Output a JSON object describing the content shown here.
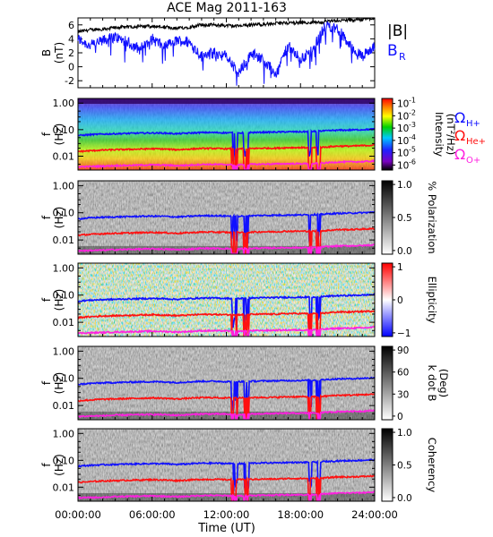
{
  "figure": {
    "title": "ACE Mag 2011-163",
    "xlabel": "Time (UT)"
  },
  "colors": {
    "B_total": "#000000",
    "B_R": "#1010ff",
    "H": "#1010ff",
    "He": "#ff1010",
    "O": "#ff20e0"
  },
  "chart_data": [
    {
      "type": "line",
      "name": "B",
      "ylabel": "B",
      "ylabel_unit": "(nT)",
      "xlim": [
        0,
        24
      ],
      "ylim": [
        -3,
        7
      ],
      "yticks": [
        -2,
        0,
        2,
        4,
        6
      ],
      "x": [
        0,
        1,
        2,
        3,
        4,
        5,
        6,
        7,
        8,
        9,
        10,
        11,
        12,
        13,
        14,
        15,
        16,
        17,
        18,
        19,
        20,
        21,
        22,
        23,
        24
      ],
      "series": [
        {
          "name": "|B|",
          "values": [
            5.0,
            5.3,
            5.4,
            5.6,
            5.7,
            5.8,
            5.8,
            5.7,
            5.5,
            5.7,
            6.0,
            6.0,
            5.9,
            5.8,
            6.0,
            6.1,
            6.2,
            6.3,
            6.3,
            6.4,
            6.4,
            6.6,
            6.7,
            6.8,
            7.0
          ]
        },
        {
          "name": "B_R",
          "values": [
            4.0,
            3.0,
            3.7,
            4.3,
            3.5,
            2.5,
            4.0,
            2.8,
            3.8,
            3.5,
            1.5,
            2.0,
            1.5,
            -1.0,
            2.0,
            1.0,
            -1.0,
            3.0,
            1.0,
            2.5,
            6.0,
            5.5,
            3.0,
            1.5,
            3.0
          ]
        }
      ],
      "legend": [
        "|B|",
        "B",
        "R"
      ]
    },
    {
      "type": "heatmap",
      "name": "intensity",
      "ylabel": "f",
      "ylabel_unit": "(Hz)",
      "yticks": [
        "1.00",
        "0.10",
        "0.01"
      ],
      "colorbar_label": "Intensity",
      "colorbar_unit": "(nT²/Hz)",
      "colorbar_ticks": [
        "10",
        "10",
        "10",
        "10",
        "10",
        "10"
      ],
      "colorbar_exponents": [
        "-1",
        "-2",
        "-3",
        "-4",
        "-5",
        "-6"
      ],
      "legend": [
        "Ω",
        "H+",
        "Ω",
        "He+",
        "Ω",
        "O+"
      ]
    },
    {
      "type": "heatmap",
      "name": "polarization",
      "ylabel": "f",
      "ylabel_unit": "(Hz)",
      "yticks": [
        "1.00",
        "0.10",
        "0.01"
      ],
      "colorbar_label": "% Polarization",
      "colorbar_ticks": [
        "1.0",
        "0.5",
        "0.0"
      ]
    },
    {
      "type": "heatmap",
      "name": "ellipticity",
      "ylabel": "f",
      "ylabel_unit": "(Hz)",
      "yticks": [
        "1.00",
        "0.10",
        "0.01"
      ],
      "colorbar_label": "Ellipticity",
      "colorbar_ticks": [
        "1",
        "0",
        "−1"
      ]
    },
    {
      "type": "heatmap",
      "name": "kdotb",
      "ylabel": "f",
      "ylabel_unit": "(Hz)",
      "yticks": [
        "1.00",
        "0.10",
        "0.01"
      ],
      "colorbar_label": "k dot B",
      "colorbar_unit": "(Deg)",
      "colorbar_ticks": [
        "90",
        "60",
        "30",
        "0"
      ]
    },
    {
      "type": "heatmap",
      "name": "coherency",
      "ylabel": "f",
      "ylabel_unit": "(Hz)",
      "yticks": [
        "1.00",
        "0.10",
        "0.01"
      ],
      "colorbar_label": "Coherency",
      "colorbar_ticks": [
        "1.0",
        "0.5",
        "0.0"
      ],
      "xticks": [
        "00:00:00",
        "06:00:00",
        "12:00:00",
        "18:00:00",
        "24:00:00"
      ],
      "xtick_hours": [
        0,
        6,
        12,
        18,
        24
      ]
    }
  ],
  "gyrofrequencies": {
    "x": [
      0,
      1,
      2,
      3,
      4,
      5,
      6,
      7,
      8,
      9,
      10,
      11,
      12,
      13,
      14,
      15,
      16,
      17,
      18,
      19,
      20,
      21,
      22,
      23,
      24
    ],
    "H+": [
      0.06,
      0.065,
      0.068,
      0.07,
      0.072,
      0.074,
      0.075,
      0.074,
      0.07,
      0.074,
      0.078,
      0.078,
      0.076,
      0.075,
      0.078,
      0.08,
      0.081,
      0.083,
      0.083,
      0.085,
      0.09,
      0.095,
      0.097,
      0.1,
      0.105
    ],
    "He+": [
      0.015,
      0.016,
      0.017,
      0.0175,
      0.018,
      0.0185,
      0.019,
      0.0185,
      0.0175,
      0.0185,
      0.0195,
      0.0195,
      0.019,
      0.019,
      0.0195,
      0.02,
      0.02,
      0.021,
      0.021,
      0.021,
      0.022,
      0.024,
      0.024,
      0.025,
      0.026
    ],
    "O+": [
      0.004,
      0.0041,
      0.0042,
      0.0044,
      0.0045,
      0.0046,
      0.0047,
      0.0046,
      0.0044,
      0.0046,
      0.0049,
      0.0049,
      0.0048,
      0.0047,
      0.0049,
      0.005,
      0.0051,
      0.0052,
      0.0052,
      0.0053,
      0.0056,
      0.006,
      0.0061,
      0.0062,
      0.0066
    ],
    "dips_hours": [
      [
        12.4,
        12.9
      ],
      [
        13.4,
        13.8
      ],
      [
        18.6,
        18.9
      ],
      [
        19.3,
        19.6
      ]
    ]
  }
}
